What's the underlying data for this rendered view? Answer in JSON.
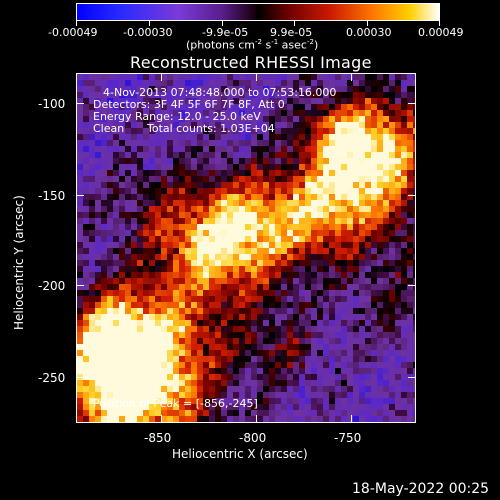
{
  "colorbar": {
    "tick_labels": [
      "-0.00049",
      "-0.00030",
      "-9.9e-05",
      "9.9e-05",
      "0.00030",
      "0.00049"
    ],
    "unit_label": "(photons cm",
    "unit_sup1": "-2",
    "unit_mid1": " s",
    "unit_sup2": "-1",
    "unit_mid2": " asec",
    "unit_sup3": "-2",
    "unit_end": ")"
  },
  "title": "Reconstructed RHESSI Image",
  "info": {
    "line1": "4-Nov-2013 07:48:48.000 to 07:53:16.000",
    "line2": "Detectors: 3F 4F 5F 6F 7F 8F, Att 0",
    "line3": "Energy Range: 12.0 - 25.0 keV",
    "line4a": "Clean",
    "line4b": "Total counts: 1.03E+04",
    "peak": "Position of Peak = [-856,-245]"
  },
  "axes": {
    "xlabel": "Heliocentric X (arcsec)",
    "ylabel": "Heliocentric Y (arcsec)",
    "xticks": [
      "-850",
      "-800",
      "-750"
    ],
    "yticks": [
      "-100",
      "-150",
      "-200",
      "-250"
    ]
  },
  "footer": {
    "timestamp": "18-May-2022 00:25"
  }
}
